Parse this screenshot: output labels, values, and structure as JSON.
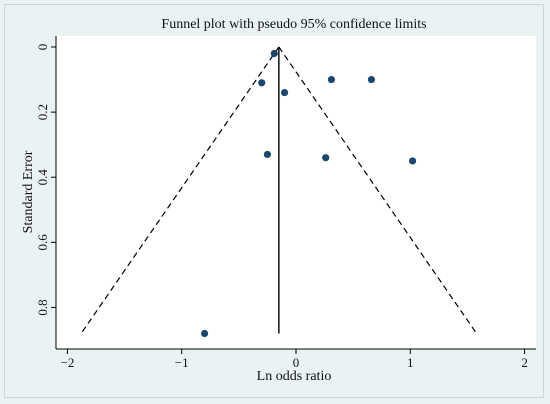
{
  "chart_data": {
    "type": "scatter",
    "title": "Funnel plot with pseudo 95% confidence limits",
    "xlabel": "Ln odds ratio",
    "ylabel": "Standard Error",
    "xlim": [
      -2.1,
      2.1
    ],
    "ylim": [
      0,
      0.9
    ],
    "y_reversed": true,
    "x_ticks": [
      -2,
      -1,
      0,
      1,
      2
    ],
    "x_tick_labels": [
      "−2",
      "−1",
      "0",
      "1",
      "2"
    ],
    "y_ticks": [
      0,
      0.2,
      0.4,
      0.6,
      0.8
    ],
    "y_tick_labels": [
      "0",
      "0.2",
      "0.4",
      "0.6",
      "0.8"
    ],
    "grid": false,
    "pooled_estimate": -0.15,
    "confidence_limits": {
      "se_max": 0.88,
      "lower_at_se_max": -1.88,
      "upper_at_se_max": 1.58
    },
    "points": [
      {
        "x": -0.19,
        "y": 0.02
      },
      {
        "x": 0.31,
        "y": 0.1
      },
      {
        "x": 0.66,
        "y": 0.1
      },
      {
        "x": -0.3,
        "y": 0.11
      },
      {
        "x": -0.1,
        "y": 0.14
      },
      {
        "x": -0.25,
        "y": 0.33
      },
      {
        "x": 0.26,
        "y": 0.34
      },
      {
        "x": 1.02,
        "y": 0.35
      },
      {
        "x": -0.8,
        "y": 0.88
      }
    ],
    "colors": {
      "point": "#1a476f",
      "line": "#000000",
      "plot_bg": "#ffffff",
      "page_bg": "#eaf2f3"
    }
  }
}
